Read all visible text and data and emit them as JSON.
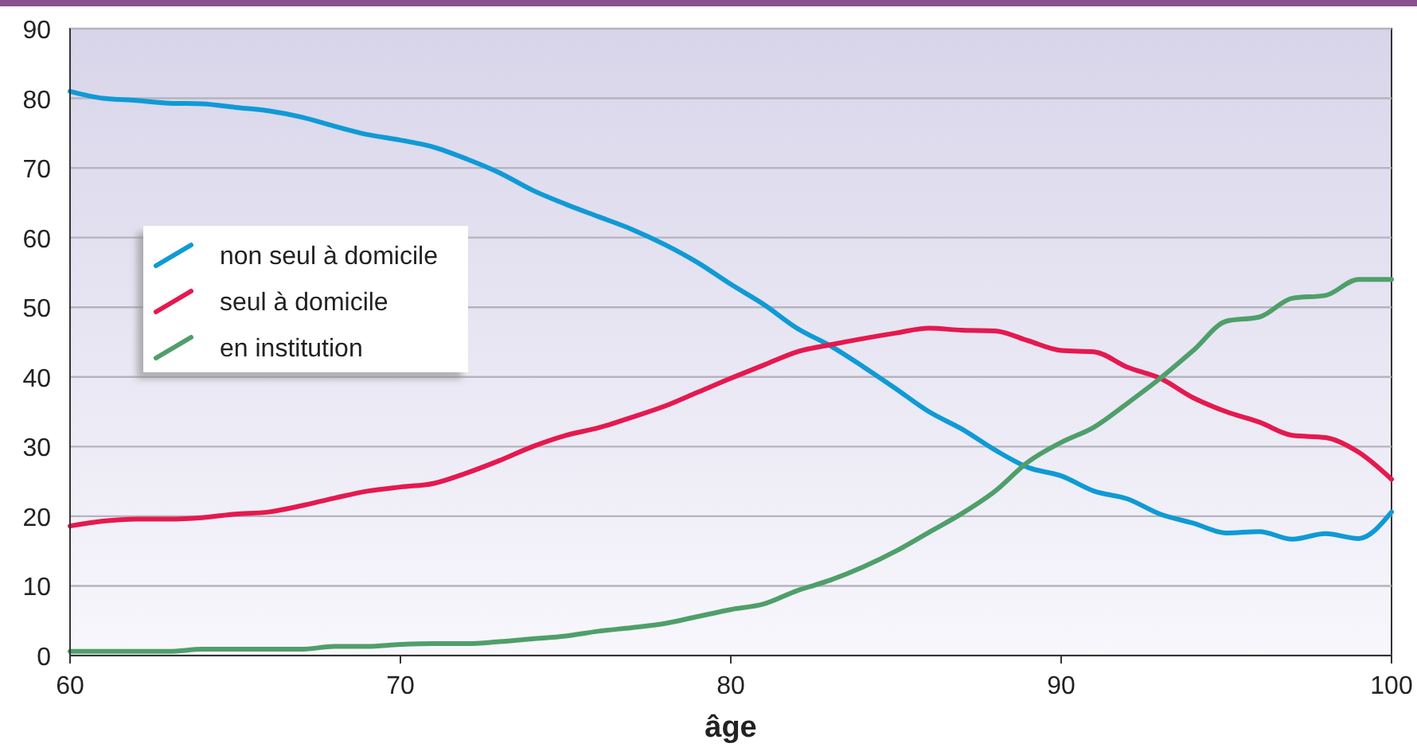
{
  "chart_data": {
    "type": "line",
    "xlabel": "âge",
    "x": [
      60,
      61,
      62,
      63,
      64,
      65,
      66,
      67,
      68,
      69,
      70,
      71,
      72,
      73,
      74,
      75,
      76,
      77,
      78,
      79,
      80,
      81,
      82,
      83,
      84,
      85,
      86,
      87,
      88,
      89,
      90,
      91,
      92,
      93,
      94,
      95,
      96,
      97,
      98,
      99,
      100
    ],
    "series": [
      {
        "name": "non seul à domicile",
        "color": "#0f9ad6",
        "values": [
          81,
          80,
          79.7,
          79.3,
          79.2,
          78.7,
          78.2,
          77.3,
          76,
          74.8,
          74,
          73,
          71.3,
          69.3,
          66.8,
          64.8,
          63,
          61.2,
          59,
          56.4,
          53.3,
          50.4,
          47,
          44.5,
          41.5,
          38.3,
          35,
          32.5,
          29.5,
          27,
          25.8,
          23.6,
          22.5,
          20.3,
          19,
          17.6,
          17.8,
          16.7,
          17.5,
          16.8,
          20.6
        ]
      },
      {
        "name": "seul à domicile",
        "color": "#e5194f",
        "values": [
          18.6,
          19.3,
          19.6,
          19.6,
          19.8,
          20.3,
          20.6,
          21.5,
          22.6,
          23.6,
          24.2,
          24.7,
          26.2,
          28,
          30,
          31.6,
          32.7,
          34.2,
          35.8,
          37.8,
          39.8,
          41.7,
          43.6,
          44.6,
          45.5,
          46.3,
          47,
          46.7,
          46.6,
          45.2,
          43.8,
          43.6,
          41.4,
          39.8,
          37,
          35,
          33.5,
          31.6,
          31.3,
          29.2,
          25.3
        ]
      },
      {
        "name": "en institution",
        "color": "#4f9f6a",
        "values": [
          0.6,
          0.6,
          0.6,
          0.6,
          0.9,
          0.9,
          0.9,
          0.9,
          1.3,
          1.3,
          1.6,
          1.7,
          1.7,
          2,
          2.4,
          2.8,
          3.5,
          4,
          4.6,
          5.6,
          6.6,
          7.4,
          9.3,
          10.8,
          12.7,
          15,
          17.7,
          20.4,
          23.6,
          27.8,
          30.6,
          32.8,
          36.2,
          39.8,
          43.8,
          48,
          48.6,
          51.3,
          51.7,
          54,
          54
        ]
      }
    ],
    "xlim": [
      60,
      100
    ],
    "xticks": [
      60,
      70,
      80,
      90,
      100
    ],
    "ylim": [
      0,
      90
    ],
    "yticks": [
      0,
      10,
      20,
      30,
      40,
      50,
      60,
      70,
      80,
      90
    ],
    "grid": "y",
    "legend": "left",
    "line_style": "solid",
    "marker": "none"
  }
}
